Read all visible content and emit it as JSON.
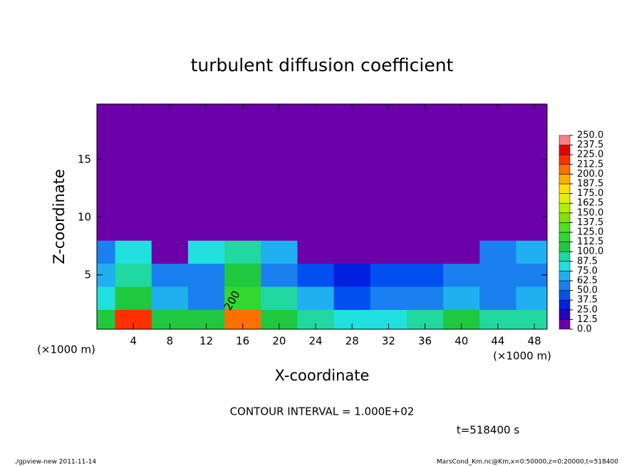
{
  "chart_data": {
    "type": "heatmap",
    "title": "turbulent diffusion coefficient",
    "x_label": "X-coordinate",
    "y_label": "Z-coordinate",
    "x_unit": "(×1000 m)",
    "y_unit": "(×1000 m)",
    "contour_label": "200",
    "contour_interval": "CONTOUR INTERVAL = 1.000E+02",
    "time_label": "t=518400 s",
    "footer_left": "./gpview-new  2011-11-14",
    "footer_right": "MarsCond_Km.nc@Km,x=0:50000,z=0:20000,t=518400",
    "xlim": [
      0,
      49.4
    ],
    "ylim": [
      0.3,
      19.8
    ],
    "xticks": [
      4,
      8,
      12,
      16,
      20,
      24,
      28,
      32,
      36,
      40,
      44,
      48
    ],
    "yticks": [
      5,
      10,
      15
    ],
    "x": [
      0,
      4,
      8,
      12,
      16,
      20,
      24,
      28,
      32,
      36,
      40,
      44,
      48
    ],
    "y": [
      1,
      3,
      5,
      7,
      9,
      11,
      13,
      15,
      17,
      19
    ],
    "z": [
      [
        100,
        220,
        100,
        110,
        200,
        110,
        90,
        80,
        80,
        90,
        100,
        90,
        90
      ],
      [
        80,
        110,
        70,
        60,
        120,
        90,
        70,
        40,
        50,
        60,
        70,
        60,
        70
      ],
      [
        70,
        90,
        60,
        50,
        100,
        60,
        40,
        30,
        40,
        40,
        50,
        50,
        60
      ],
      [
        60,
        80,
        0,
        80,
        90,
        70,
        0,
        0,
        0,
        10,
        0,
        60,
        70
      ],
      [
        0,
        0,
        0,
        0,
        0,
        0,
        0,
        0,
        0,
        0,
        0,
        0,
        0
      ],
      [
        0,
        0,
        0,
        0,
        0,
        0,
        0,
        0,
        0,
        0,
        0,
        0,
        0
      ],
      [
        0,
        0,
        0,
        0,
        0,
        0,
        0,
        0,
        0,
        0,
        0,
        0,
        0
      ],
      [
        0,
        0,
        0,
        0,
        0,
        0,
        0,
        0,
        0,
        0,
        0,
        0,
        0
      ],
      [
        0,
        0,
        0,
        0,
        0,
        0,
        0,
        0,
        0,
        0,
        0,
        0,
        0
      ],
      [
        0,
        0,
        0,
        0,
        0,
        0,
        0,
        0,
        0,
        0,
        0,
        0,
        0
      ]
    ],
    "levels": [
      {
        "value": 0,
        "label": "0.0"
      },
      {
        "value": 12.5,
        "label": "12.5"
      },
      {
        "value": 25,
        "label": "25.0"
      },
      {
        "value": 37.5,
        "label": "37.5"
      },
      {
        "value": 50,
        "label": "50.0"
      },
      {
        "value": 62.5,
        "label": "62.5"
      },
      {
        "value": 75,
        "label": "75.0"
      },
      {
        "value": 87.5,
        "label": "87.5"
      },
      {
        "value": 100,
        "label": "100.0"
      },
      {
        "value": 112.5,
        "label": "112.5"
      },
      {
        "value": 125,
        "label": "125.0"
      },
      {
        "value": 137.5,
        "label": "137.5"
      },
      {
        "value": 150,
        "label": "150.0"
      },
      {
        "value": 162.5,
        "label": "162.5"
      },
      {
        "value": 175,
        "label": "175.0"
      },
      {
        "value": 187.5,
        "label": "187.5"
      },
      {
        "value": 200,
        "label": "200.0"
      },
      {
        "value": 212.5,
        "label": "212.5"
      },
      {
        "value": 225,
        "label": "225.0"
      },
      {
        "value": 237.5,
        "label": "237.5"
      },
      {
        "value": 250,
        "label": "250.0"
      }
    ],
    "colors": [
      "#6c00a8",
      "#2a00c4",
      "#0020e0",
      "#0050f0",
      "#1a80f0",
      "#20b0f0",
      "#20e0e0",
      "#20d8a0",
      "#20c840",
      "#30d830",
      "#50e020",
      "#80e010",
      "#b0f000",
      "#e0f000",
      "#ffe000",
      "#ffb000",
      "#ff7000",
      "#ff3000",
      "#e00000",
      "#ff8080"
    ]
  }
}
